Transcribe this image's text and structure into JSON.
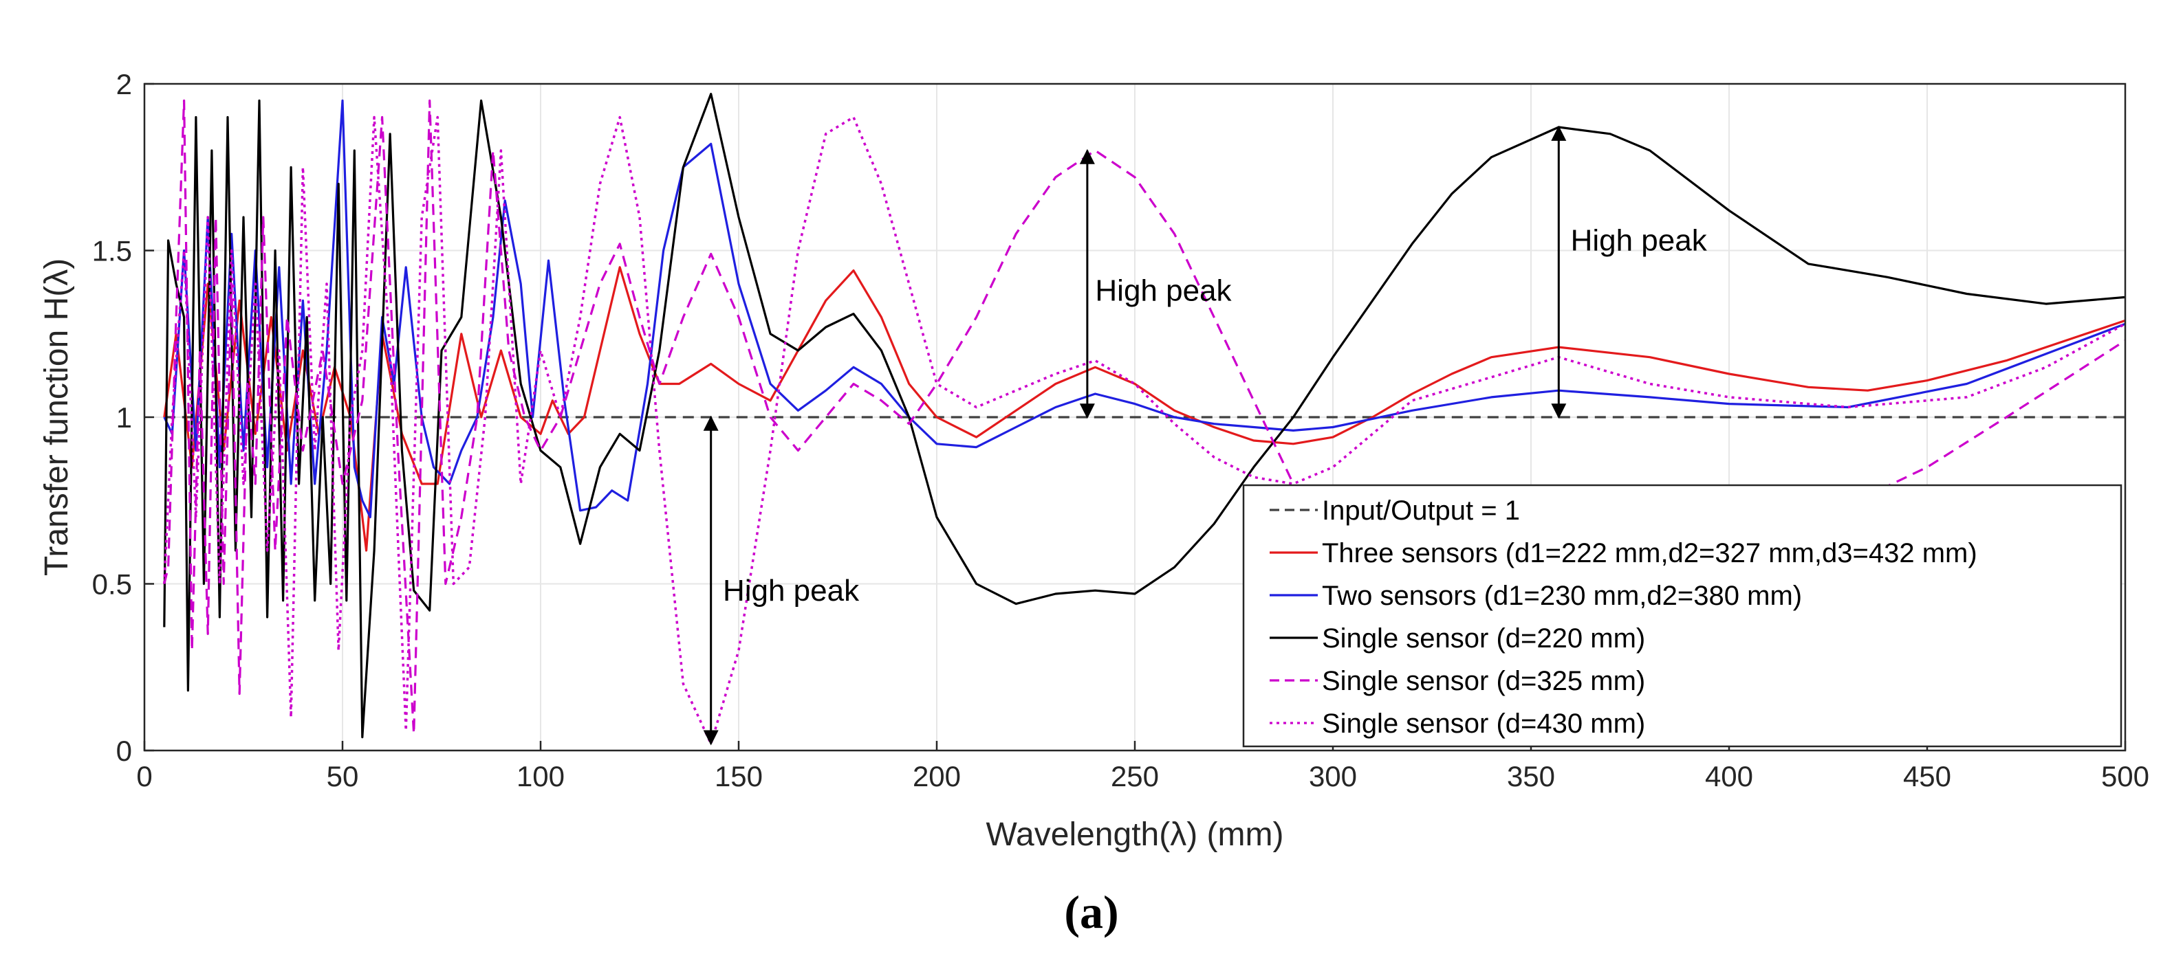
{
  "chart_data": {
    "type": "line",
    "xlabel": "Wavelength(λ) (mm)",
    "ylabel": "Transfer function H(λ)",
    "xlim": [
      0,
      500
    ],
    "ylim": [
      0,
      2
    ],
    "xticks": [
      0,
      50,
      100,
      150,
      200,
      250,
      300,
      350,
      400,
      450,
      500
    ],
    "yticks": [
      0,
      0.5,
      1,
      1.5,
      2
    ],
    "ytick_labels": [
      "0",
      "0.5",
      "1",
      "1.5",
      "2"
    ],
    "grid": true,
    "legend_position": "lower-right",
    "caption": "(a)",
    "series": [
      {
        "name": "Input/Output = 1",
        "color": "#404040",
        "style": "dashed",
        "x": [
          5,
          500
        ],
        "y": [
          1,
          1
        ]
      },
      {
        "name": "Three sensors (d1=222 mm,d2=327 mm,d3=432 mm)",
        "color": "#e31a1c",
        "style": "solid",
        "x": [
          5,
          8,
          12,
          16,
          20,
          24,
          28,
          32,
          36,
          40,
          44,
          48,
          52,
          56,
          60,
          65,
          70,
          74,
          80,
          85,
          90,
          95,
          100,
          103,
          107,
          111,
          115,
          120,
          125,
          130,
          135,
          143,
          150,
          158,
          165,
          172,
          179,
          186,
          193,
          200,
          210,
          220,
          230,
          240,
          250,
          260,
          270,
          280,
          290,
          300,
          310,
          320,
          330,
          340,
          357,
          380,
          400,
          420,
          435,
          450,
          470,
          500
        ],
        "y": [
          1.0,
          1.25,
          0.85,
          1.4,
          0.9,
          1.35,
          0.95,
          1.3,
          0.9,
          1.2,
          0.95,
          1.15,
          1.0,
          0.6,
          1.25,
          0.95,
          0.8,
          0.8,
          1.25,
          1.0,
          1.2,
          1.0,
          0.95,
          1.05,
          0.95,
          1.0,
          1.2,
          1.45,
          1.25,
          1.1,
          1.1,
          1.16,
          1.1,
          1.05,
          1.2,
          1.35,
          1.44,
          1.3,
          1.1,
          1.0,
          0.94,
          1.02,
          1.1,
          1.15,
          1.1,
          1.02,
          0.97,
          0.93,
          0.92,
          0.94,
          1.0,
          1.07,
          1.13,
          1.18,
          1.21,
          1.18,
          1.13,
          1.09,
          1.08,
          1.11,
          1.17,
          1.29
        ]
      },
      {
        "name": "Two sensors (d1=230 mm,d2=380 mm)",
        "color": "#1f1fe0",
        "style": "solid",
        "x": [
          5,
          7,
          10,
          13,
          16,
          19,
          22,
          25,
          28,
          31,
          34,
          37,
          40,
          43,
          46,
          50,
          53,
          55,
          57,
          60,
          63,
          66,
          70,
          73,
          77,
          80,
          84,
          88,
          91,
          95,
          98,
          102,
          106,
          110,
          114,
          118,
          122,
          127,
          131,
          136,
          143,
          150,
          158,
          165,
          172,
          179,
          186,
          193,
          200,
          210,
          220,
          230,
          240,
          250,
          260,
          270,
          280,
          290,
          300,
          320,
          340,
          357,
          380,
          400,
          430,
          460,
          500
        ],
        "y": [
          1.0,
          0.95,
          1.5,
          0.9,
          1.6,
          0.85,
          1.55,
          0.9,
          1.5,
          0.85,
          1.45,
          0.8,
          1.35,
          0.8,
          1.2,
          1.95,
          0.85,
          0.75,
          0.7,
          1.3,
          1.1,
          1.45,
          1.0,
          0.85,
          0.8,
          0.9,
          1.0,
          1.3,
          1.65,
          1.4,
          1.0,
          1.47,
          1.05,
          0.72,
          0.73,
          0.78,
          0.75,
          1.1,
          1.5,
          1.75,
          1.82,
          1.4,
          1.1,
          1.02,
          1.08,
          1.15,
          1.1,
          1.0,
          0.92,
          0.91,
          0.97,
          1.03,
          1.07,
          1.04,
          1.0,
          0.98,
          0.97,
          0.96,
          0.97,
          1.02,
          1.06,
          1.08,
          1.06,
          1.04,
          1.03,
          1.1,
          1.28
        ]
      },
      {
        "name": "Single sensor (d=220 mm)",
        "color": "#000000",
        "style": "solid",
        "x": [
          5,
          6,
          8,
          10,
          11,
          13,
          15,
          17,
          19,
          21,
          23,
          25,
          27,
          29,
          31,
          33,
          35,
          37,
          39,
          41,
          43,
          45,
          47,
          49,
          51,
          53,
          55,
          58,
          62,
          65,
          68,
          72,
          75,
          80,
          85,
          90,
          95,
          100,
          105,
          110,
          115,
          120,
          125,
          130,
          136,
          143,
          150,
          158,
          165,
          172,
          179,
          186,
          193,
          200,
          210,
          220,
          230,
          240,
          250,
          260,
          270,
          280,
          290,
          300,
          310,
          320,
          330,
          340,
          357,
          370,
          380,
          400,
          420,
          440,
          460,
          480,
          500
        ],
        "y": [
          0.37,
          1.53,
          1.4,
          1.3,
          0.18,
          1.9,
          0.5,
          1.8,
          0.4,
          1.9,
          0.6,
          1.6,
          0.7,
          1.95,
          0.4,
          1.5,
          0.45,
          1.75,
          0.8,
          1.3,
          0.45,
          1.0,
          0.5,
          1.7,
          0.45,
          1.8,
          0.04,
          0.6,
          1.85,
          0.9,
          0.48,
          0.42,
          1.2,
          1.3,
          1.95,
          1.6,
          1.1,
          0.9,
          0.85,
          0.62,
          0.85,
          0.95,
          0.9,
          1.2,
          1.75,
          1.97,
          1.6,
          1.25,
          1.2,
          1.27,
          1.31,
          1.2,
          1.0,
          0.7,
          0.5,
          0.44,
          0.47,
          0.48,
          0.47,
          0.55,
          0.68,
          0.85,
          1.0,
          1.18,
          1.35,
          1.52,
          1.67,
          1.78,
          1.87,
          1.85,
          1.8,
          1.62,
          1.46,
          1.42,
          1.37,
          1.34,
          1.36
        ]
      },
      {
        "name": "Single sensor (d=325 mm)",
        "color": "#cc00cc",
        "style": "dashed",
        "x": [
          5,
          6,
          8,
          10,
          12,
          14,
          16,
          18,
          20,
          22,
          24,
          26,
          28,
          30,
          33,
          36,
          40,
          45,
          50,
          55,
          60,
          64,
          68,
          72,
          76,
          80,
          84,
          88,
          92,
          96,
          100,
          105,
          110,
          115,
          120,
          125,
          130,
          136,
          143,
          150,
          158,
          165,
          172,
          179,
          186,
          193,
          200,
          210,
          220,
          230,
          240,
          250,
          260,
          270,
          280,
          290,
          300,
          310,
          320,
          330,
          340,
          357,
          370,
          380,
          400,
          420,
          450,
          470,
          500
        ],
        "y": [
          0.5,
          0.55,
          1.3,
          1.95,
          0.3,
          1.2,
          0.35,
          1.6,
          0.5,
          1.4,
          0.17,
          1.1,
          0.8,
          1.6,
          0.6,
          1.3,
          0.9,
          1.2,
          0.8,
          1.05,
          1.9,
          0.9,
          0.05,
          1.95,
          0.5,
          0.7,
          1.0,
          1.8,
          1.2,
          1.0,
          0.9,
          1.0,
          1.2,
          1.4,
          1.52,
          1.3,
          1.1,
          1.3,
          1.49,
          1.3,
          1.0,
          0.9,
          1.0,
          1.1,
          1.05,
          0.98,
          1.1,
          1.3,
          1.55,
          1.72,
          1.8,
          1.72,
          1.55,
          1.3,
          1.05,
          0.8,
          0.6,
          0.47,
          0.43,
          0.4,
          0.35,
          0.3,
          0.3,
          0.35,
          0.5,
          0.68,
          0.85,
          1.0,
          1.23
        ]
      },
      {
        "name": "Single sensor (d=430 mm)",
        "color": "#cc00cc",
        "style": "dotted",
        "x": [
          5,
          7,
          10,
          13,
          16,
          19,
          22,
          25,
          28,
          31,
          34,
          37,
          40,
          43,
          46,
          49,
          52,
          55,
          58,
          62,
          66,
          70,
          74,
          78,
          82,
          86,
          90,
          95,
          100,
          105,
          110,
          115,
          120,
          125,
          130,
          136,
          143,
          150,
          158,
          165,
          172,
          179,
          186,
          193,
          200,
          210,
          220,
          230,
          240,
          250,
          260,
          270,
          280,
          290,
          300,
          310,
          320,
          340,
          357,
          380,
          400,
          430,
          460,
          480,
          500
        ],
        "y": [
          0.5,
          1.0,
          1.5,
          0.7,
          1.6,
          0.5,
          1.5,
          0.8,
          1.4,
          0.6,
          1.2,
          0.1,
          1.75,
          0.9,
          1.4,
          0.3,
          1.0,
          1.2,
          1.9,
          1.2,
          0.06,
          1.6,
          1.9,
          0.5,
          0.55,
          1.0,
          1.8,
          0.8,
          1.2,
          1.0,
          1.3,
          1.7,
          1.9,
          1.6,
          0.9,
          0.2,
          0.02,
          0.3,
          0.9,
          1.5,
          1.85,
          1.9,
          1.7,
          1.4,
          1.1,
          1.03,
          1.08,
          1.13,
          1.17,
          1.1,
          0.98,
          0.88,
          0.82,
          0.8,
          0.85,
          0.95,
          1.05,
          1.12,
          1.18,
          1.1,
          1.06,
          1.03,
          1.06,
          1.15,
          1.28
        ]
      }
    ],
    "annotations": [
      {
        "text": "High peak",
        "x": 143,
        "y_from": 0.02,
        "y_to": 1.0,
        "label_x": 146,
        "label_y": 0.45
      },
      {
        "text": "High peak",
        "x": 238,
        "y_from": 1.0,
        "y_to": 1.8,
        "label_x": 240,
        "label_y": 1.35
      },
      {
        "text": "High peak",
        "x": 357,
        "y_from": 1.0,
        "y_to": 1.87,
        "label_x": 360,
        "label_y": 1.5
      }
    ]
  }
}
